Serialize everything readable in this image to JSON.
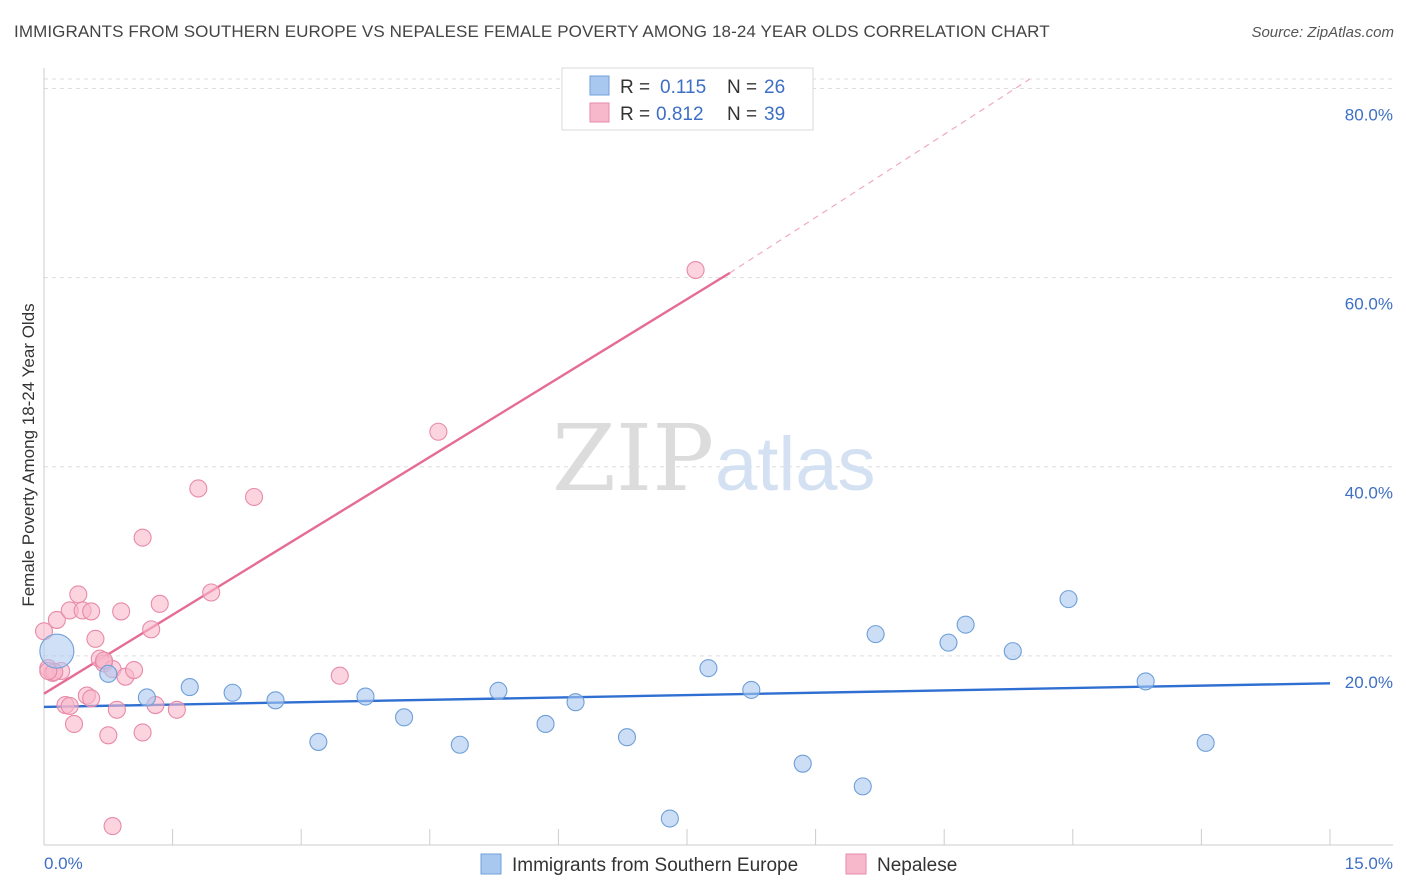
{
  "header": {
    "title": "IMMIGRANTS FROM SOUTHERN EUROPE VS NEPALESE FEMALE POVERTY AMONG 18-24 YEAR OLDS CORRELATION CHART",
    "source": "Source: ZipAtlas.com"
  },
  "watermark": {
    "zip": "ZIP",
    "atlas": "atlas"
  },
  "legend": {
    "r_label": "R =",
    "n_label": "N =",
    "rows": [
      {
        "r": "0.115",
        "n": "26",
        "color": "#a9c8f0"
      },
      {
        "r": "0.812",
        "n": "39",
        "color": "#f8b8cc"
      }
    ]
  },
  "bottom_legend": [
    {
      "label": "Immigrants from Southern Europe",
      "color": "#a9c8f0"
    },
    {
      "label": "Nepalese",
      "color": "#f8b8cc"
    }
  ],
  "chart_data": {
    "type": "scatter",
    "title": "IMMIGRANTS FROM SOUTHERN EUROPE VS NEPALESE FEMALE POVERTY AMONG 18-24 YEAR OLDS CORRELATION CHART",
    "xlabel": "",
    "ylabel": "Female Poverty Among 18-24 Year Olds",
    "xlim": [
      0,
      15
    ],
    "ylim": [
      0,
      81
    ],
    "x_tick_labels": [
      "0.0%",
      "15.0%"
    ],
    "y_ticks": [
      20,
      40,
      60,
      80
    ],
    "y_tick_labels": [
      "20.0%",
      "40.0%",
      "60.0%",
      "80.0%"
    ],
    "grid": true,
    "series": [
      {
        "name": "Immigrants from Southern Europe",
        "color": "#a9c8f0",
        "line_color": "#2f6fd1",
        "trend": {
          "x": [
            0.0,
            15.0
          ],
          "y": [
            14.6,
            17.1
          ]
        },
        "points": [
          {
            "x": 0.15,
            "y": 20.5,
            "big": true
          },
          {
            "x": 0.75,
            "y": 18.1
          },
          {
            "x": 1.2,
            "y": 15.6
          },
          {
            "x": 1.7,
            "y": 16.7
          },
          {
            "x": 2.2,
            "y": 16.1
          },
          {
            "x": 2.7,
            "y": 15.3
          },
          {
            "x": 3.2,
            "y": 10.9
          },
          {
            "x": 3.75,
            "y": 15.7
          },
          {
            "x": 4.2,
            "y": 13.5
          },
          {
            "x": 4.85,
            "y": 10.6
          },
          {
            "x": 5.3,
            "y": 16.3
          },
          {
            "x": 5.85,
            "y": 12.8
          },
          {
            "x": 6.2,
            "y": 15.1
          },
          {
            "x": 6.8,
            "y": 11.4
          },
          {
            "x": 7.3,
            "y": 2.8
          },
          {
            "x": 7.75,
            "y": 18.7
          },
          {
            "x": 8.25,
            "y": 16.4
          },
          {
            "x": 8.85,
            "y": 8.6
          },
          {
            "x": 9.55,
            "y": 6.2
          },
          {
            "x": 9.7,
            "y": 22.3
          },
          {
            "x": 10.55,
            "y": 21.4
          },
          {
            "x": 10.75,
            "y": 23.3
          },
          {
            "x": 11.3,
            "y": 20.5
          },
          {
            "x": 11.95,
            "y": 26.0
          },
          {
            "x": 12.85,
            "y": 17.3
          },
          {
            "x": 13.55,
            "y": 10.8
          }
        ]
      },
      {
        "name": "Nepalese",
        "color": "#f8b8cc",
        "line_color": "#e56c94",
        "trend": {
          "x": [
            0.0,
            8.0
          ],
          "y": [
            16.0,
            60.5
          ]
        },
        "trend_ext": {
          "x": [
            8.0,
            11.5
          ],
          "y": [
            60.5,
            81.0
          ]
        },
        "points": [
          {
            "x": 0.0,
            "y": 22.6
          },
          {
            "x": 0.05,
            "y": 18.7
          },
          {
            "x": 0.1,
            "y": 18.2
          },
          {
            "x": 0.15,
            "y": 23.8
          },
          {
            "x": 0.2,
            "y": 18.4
          },
          {
            "x": 0.25,
            "y": 14.8
          },
          {
            "x": 0.3,
            "y": 24.8
          },
          {
            "x": 0.35,
            "y": 12.8
          },
          {
            "x": 0.4,
            "y": 26.5
          },
          {
            "x": 0.45,
            "y": 24.8
          },
          {
            "x": 0.5,
            "y": 15.8
          },
          {
            "x": 0.55,
            "y": 24.7
          },
          {
            "x": 0.6,
            "y": 21.8
          },
          {
            "x": 0.65,
            "y": 19.7
          },
          {
            "x": 0.7,
            "y": 19.2
          },
          {
            "x": 0.75,
            "y": 11.6
          },
          {
            "x": 0.8,
            "y": 18.6
          },
          {
            "x": 0.85,
            "y": 14.3
          },
          {
            "x": 0.9,
            "y": 24.7
          },
          {
            "x": 0.95,
            "y": 17.8
          },
          {
            "x": 1.05,
            "y": 18.5
          },
          {
            "x": 1.15,
            "y": 11.9
          },
          {
            "x": 1.25,
            "y": 22.8
          },
          {
            "x": 1.35,
            "y": 25.5
          },
          {
            "x": 1.55,
            "y": 14.3
          },
          {
            "x": 1.15,
            "y": 32.5
          },
          {
            "x": 1.8,
            "y": 37.7
          },
          {
            "x": 1.95,
            "y": 26.7
          },
          {
            "x": 2.45,
            "y": 36.8
          },
          {
            "x": 3.45,
            "y": 17.9
          },
          {
            "x": 4.6,
            "y": 43.7
          },
          {
            "x": 7.6,
            "y": 60.8
          },
          {
            "x": 0.8,
            "y": 2.0
          },
          {
            "x": 0.3,
            "y": 14.7
          },
          {
            "x": 1.3,
            "y": 14.8
          },
          {
            "x": 0.12,
            "y": 18.3
          },
          {
            "x": 0.55,
            "y": 15.5
          },
          {
            "x": 0.7,
            "y": 19.5
          },
          {
            "x": 0.05,
            "y": 18.4
          }
        ]
      }
    ]
  }
}
